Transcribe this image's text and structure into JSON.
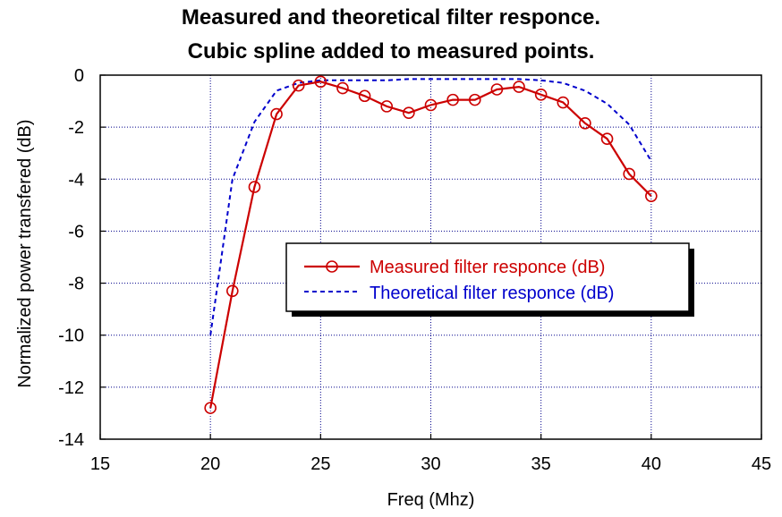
{
  "chart_data": {
    "type": "line",
    "title_line1": "Measured and theoretical filter responce.",
    "title_line2": "Cubic spline added to measured points.",
    "xlabel": "Freq (Mhz)",
    "ylabel": "Normalized power transfered (dB)",
    "xlim": [
      15,
      45
    ],
    "ylim": [
      -14,
      0
    ],
    "xticks": [
      "15",
      "20",
      "25",
      "30",
      "35",
      "40",
      "45"
    ],
    "yticks": [
      "0",
      "-2",
      "-4",
      "-6",
      "-8",
      "-10",
      "-12",
      "-14"
    ],
    "grid": true,
    "legend_position": "center-right",
    "series": [
      {
        "name": "Measured filter responce (dB)",
        "color": "#cc0000",
        "style": "solid-with-circle-markers",
        "x": [
          20,
          21,
          22,
          23,
          24,
          25,
          26,
          27,
          28,
          29,
          30,
          31,
          32,
          33,
          34,
          35,
          36,
          37,
          38,
          39,
          40
        ],
        "y": [
          -12.8,
          -8.3,
          -4.3,
          -1.5,
          -0.4,
          -0.25,
          -0.5,
          -0.8,
          -1.2,
          -1.45,
          -1.15,
          -0.95,
          -0.95,
          -0.55,
          -0.45,
          -0.75,
          -1.05,
          -1.85,
          -2.45,
          -3.8,
          -4.65
        ]
      },
      {
        "name": "Theoretical filter responce (dB)",
        "color": "#0000cc",
        "style": "dashed",
        "x": [
          20,
          21,
          22,
          23,
          24,
          25,
          26,
          27,
          28,
          29,
          30,
          31,
          32,
          33,
          34,
          35,
          36,
          37,
          38,
          39,
          40
        ],
        "y": [
          -10.0,
          -4.0,
          -1.8,
          -0.6,
          -0.3,
          -0.2,
          -0.2,
          -0.2,
          -0.2,
          -0.15,
          -0.15,
          -0.15,
          -0.15,
          -0.15,
          -0.15,
          -0.2,
          -0.3,
          -0.6,
          -1.1,
          -1.9,
          -3.3
        ]
      }
    ]
  }
}
